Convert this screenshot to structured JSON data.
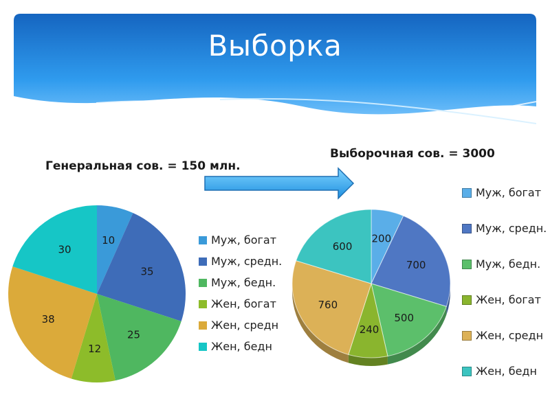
{
  "slide": {
    "title": "Выборка",
    "general_label": "Генеральная сов. = 150 млн.",
    "sample_label": "Выборочная сов. = 3000"
  },
  "icons": [
    "arrow-right-icon"
  ],
  "chart_data": [
    {
      "type": "pie",
      "title": "",
      "categories": [
        "Муж, богат",
        "Муж, средн.",
        "Муж, бедн.",
        "Жен, богат",
        "Жен, средн",
        "Жен, бедн"
      ],
      "values": [
        10,
        35,
        25,
        12,
        38,
        30
      ],
      "colors": [
        "#3a9ad9",
        "#3e6cb8",
        "#4fb760",
        "#8dbc2a",
        "#dbaa3a",
        "#16c6c6"
      ],
      "legend_position": "right"
    },
    {
      "type": "pie",
      "title": "",
      "style": "3d",
      "categories": [
        "Муж, богат",
        "Муж, средн.",
        "Муж, бедн.",
        "Жен, богат",
        "Жен, средн",
        "Жен, бедн"
      ],
      "values": [
        200,
        700,
        500,
        240,
        760,
        600
      ],
      "colors": [
        "#5aaee8",
        "#4f77c3",
        "#5cbf6b",
        "#8ab52e",
        "#dcb157",
        "#3cc4c0"
      ],
      "legend_position": "right"
    }
  ]
}
